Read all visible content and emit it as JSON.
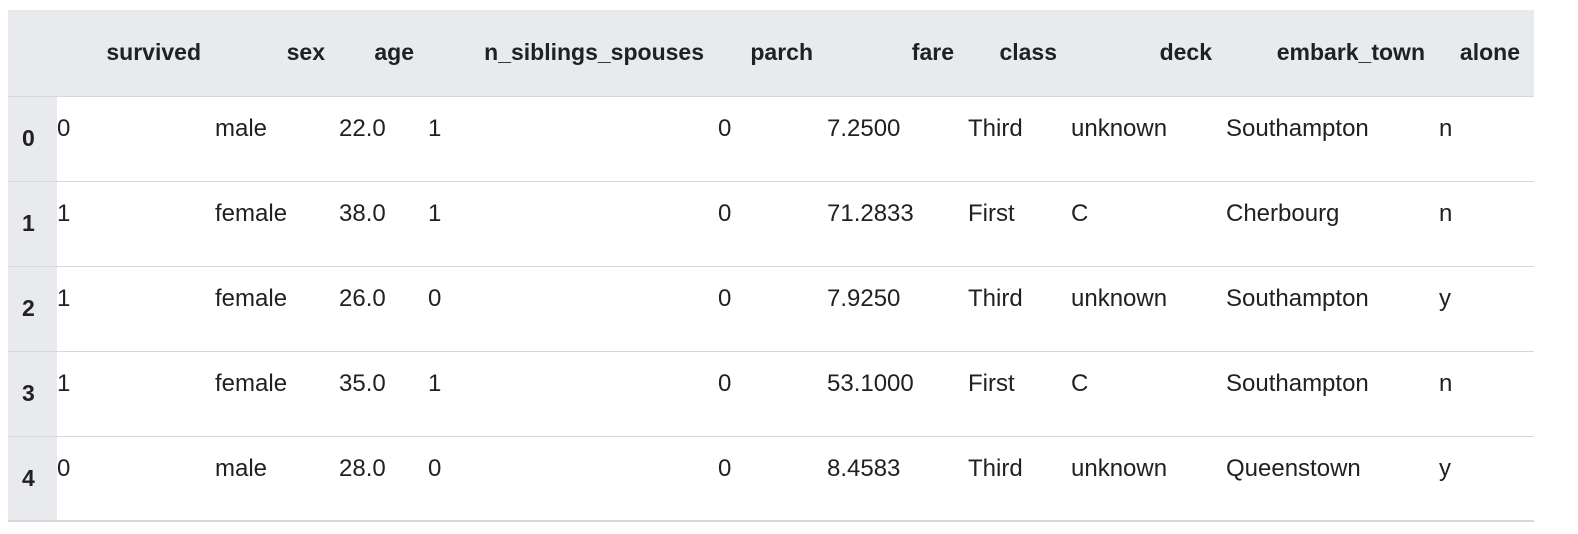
{
  "table": {
    "columns": [
      "survived",
      "sex",
      "age",
      "n_siblings_spouses",
      "parch",
      "fare",
      "class",
      "deck",
      "embark_town",
      "alone"
    ],
    "rows": [
      {
        "index": "0",
        "cells": [
          "0",
          "male",
          "22.0",
          "1",
          "0",
          "7.2500",
          "Third",
          "unknown",
          "Southampton",
          "n"
        ]
      },
      {
        "index": "1",
        "cells": [
          "1",
          "female",
          "38.0",
          "1",
          "0",
          "71.2833",
          "First",
          "C",
          "Cherbourg",
          "n"
        ]
      },
      {
        "index": "2",
        "cells": [
          "1",
          "female",
          "26.0",
          "0",
          "0",
          "7.9250",
          "Third",
          "unknown",
          "Southampton",
          "y"
        ]
      },
      {
        "index": "3",
        "cells": [
          "1",
          "female",
          "35.0",
          "1",
          "0",
          "53.1000",
          "First",
          "C",
          "Southampton",
          "n"
        ]
      },
      {
        "index": "4",
        "cells": [
          "0",
          "male",
          "28.0",
          "0",
          "0",
          "8.4583",
          "Third",
          "unknown",
          "Queenstown",
          "y"
        ]
      }
    ]
  },
  "colors": {
    "header_bg": "#e8eaed",
    "row_border": "#d7d7d7",
    "text": "#212121"
  }
}
